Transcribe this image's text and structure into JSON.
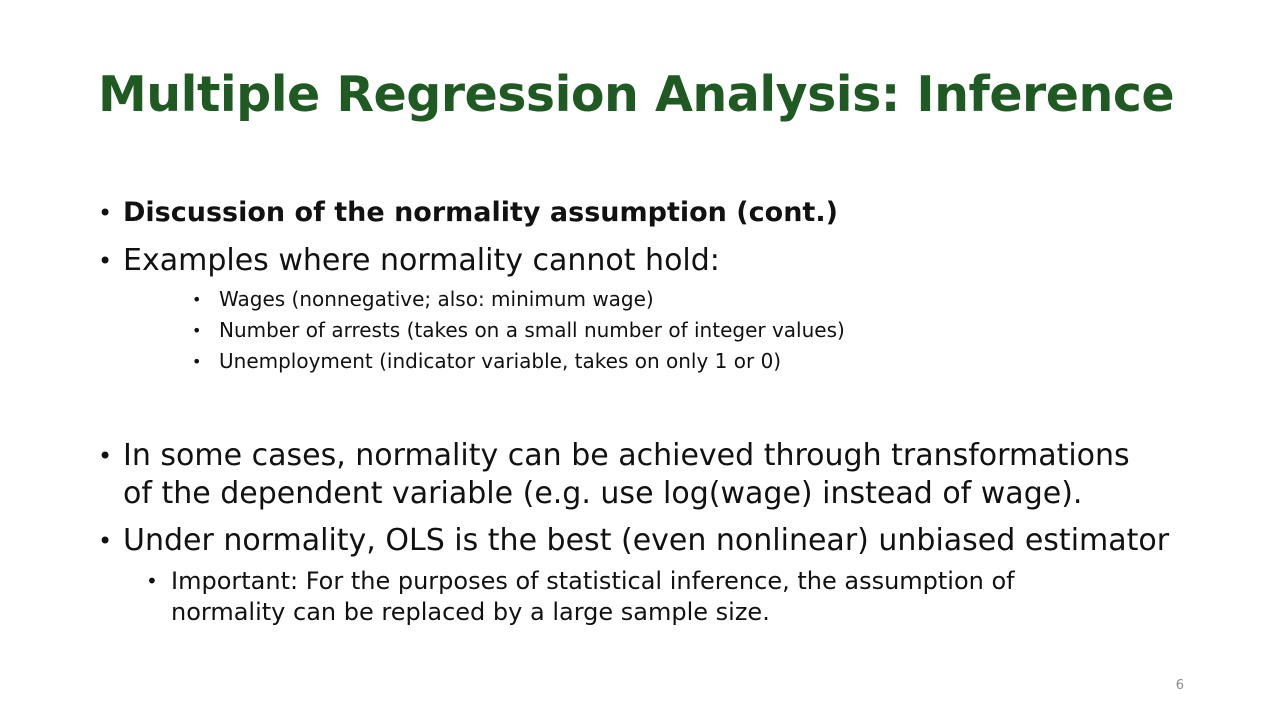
{
  "slide": {
    "title": "Multiple Regression Analysis: Inference",
    "bullets": [
      {
        "text": "Discussion of the normality assumption (cont.)"
      },
      {
        "text": "Examples where normality cannot hold:"
      },
      {
        "text": "Wages (nonnegative; also: minimum wage)"
      },
      {
        "text": "Number of arrests (takes on a small number of integer values)"
      },
      {
        "text": "Unemployment (indicator variable, takes on only 1 or 0)"
      },
      {
        "text": "In some cases, normality can be achieved through transformations of the dependent variable (e.g. use log(wage) instead of wage)."
      },
      {
        "text": "Under normality, OLS is the best (even nonlinear) unbiased estimator"
      },
      {
        "text": "Important: For the purposes of statistical inference, the assumption of normality can be replaced by a large sample size."
      }
    ],
    "bullet_glyph": "•",
    "page_number": "6"
  }
}
